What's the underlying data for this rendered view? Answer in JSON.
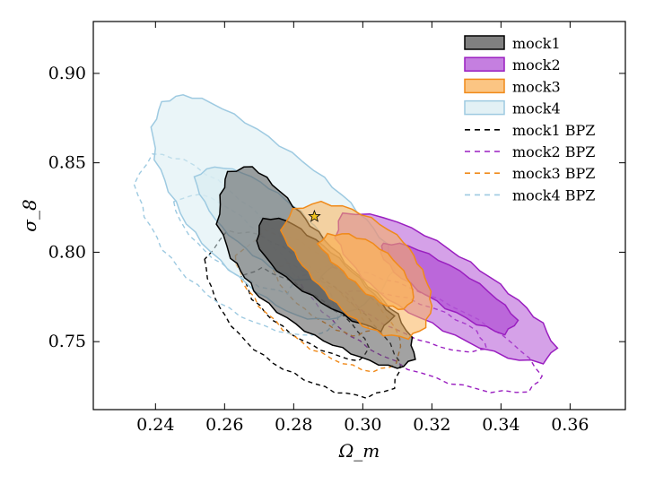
{
  "chart_data": {
    "type": "contour",
    "title": "",
    "xlabel": "Ω_m",
    "ylabel": "σ_8",
    "xlim": [
      0.222,
      0.376
    ],
    "ylim": [
      0.712,
      0.929
    ],
    "xticks": [
      0.24,
      0.26,
      0.28,
      0.3,
      0.32,
      0.34,
      0.36
    ],
    "yticks": [
      0.75,
      0.8,
      0.85,
      0.9
    ],
    "xtick_labels": [
      "0.24",
      "0.26",
      "0.28",
      "0.30",
      "0.32",
      "0.34",
      "0.36"
    ],
    "ytick_labels": [
      "0.75",
      "0.80",
      "0.85",
      "0.90"
    ],
    "grid": false,
    "legend_position": "top-right",
    "fiducial_marker": {
      "symbol": "star",
      "x": 0.286,
      "y": 0.82,
      "color": "#f2c31b"
    },
    "series": [
      {
        "name": "mock1",
        "style": "filled",
        "color": "#000000",
        "fill": "#555555",
        "outer": [
          [
            0.262,
            0.797
          ],
          [
            0.266,
            0.786
          ],
          [
            0.27,
            0.775
          ],
          [
            0.278,
            0.763
          ],
          [
            0.286,
            0.753
          ],
          [
            0.294,
            0.746
          ],
          [
            0.302,
            0.739
          ],
          [
            0.31,
            0.735
          ],
          [
            0.315,
            0.74
          ],
          [
            0.314,
            0.752
          ],
          [
            0.31,
            0.765
          ],
          [
            0.304,
            0.777
          ],
          [
            0.297,
            0.79
          ],
          [
            0.291,
            0.803
          ],
          [
            0.285,
            0.815
          ],
          [
            0.28,
            0.826
          ],
          [
            0.274,
            0.838
          ],
          [
            0.268,
            0.848
          ],
          [
            0.261,
            0.845
          ],
          [
            0.259,
            0.832
          ],
          [
            0.258,
            0.816
          ]
        ],
        "inner": [
          [
            0.269,
            0.806
          ],
          [
            0.273,
            0.794
          ],
          [
            0.28,
            0.782
          ],
          [
            0.288,
            0.772
          ],
          [
            0.297,
            0.762
          ],
          [
            0.305,
            0.756
          ],
          [
            0.309,
            0.764
          ],
          [
            0.303,
            0.777
          ],
          [
            0.297,
            0.789
          ],
          [
            0.291,
            0.8
          ],
          [
            0.284,
            0.81
          ],
          [
            0.278,
            0.818
          ],
          [
            0.271,
            0.819
          ]
        ]
      },
      {
        "name": "mock2",
        "style": "filled",
        "color": "#9a1fc0",
        "fill": "#b254d6",
        "outer": [
          [
            0.292,
            0.808
          ],
          [
            0.296,
            0.795
          ],
          [
            0.302,
            0.782
          ],
          [
            0.31,
            0.77
          ],
          [
            0.32,
            0.76
          ],
          [
            0.33,
            0.75
          ],
          [
            0.342,
            0.741
          ],
          [
            0.352,
            0.738
          ],
          [
            0.356,
            0.746
          ],
          [
            0.352,
            0.76
          ],
          [
            0.345,
            0.773
          ],
          [
            0.337,
            0.786
          ],
          [
            0.328,
            0.798
          ],
          [
            0.318,
            0.81
          ],
          [
            0.306,
            0.82
          ],
          [
            0.294,
            0.822
          ]
        ],
        "inner": [
          [
            0.305,
            0.8
          ],
          [
            0.309,
            0.789
          ],
          [
            0.316,
            0.779
          ],
          [
            0.324,
            0.769
          ],
          [
            0.333,
            0.76
          ],
          [
            0.341,
            0.754
          ],
          [
            0.345,
            0.762
          ],
          [
            0.339,
            0.774
          ],
          [
            0.331,
            0.786
          ],
          [
            0.322,
            0.796
          ],
          [
            0.313,
            0.804
          ],
          [
            0.306,
            0.805
          ]
        ]
      },
      {
        "name": "mock3",
        "style": "filled",
        "color": "#f08a1a",
        "fill": "#fab25a",
        "outer": [
          [
            0.276,
            0.812
          ],
          [
            0.28,
            0.8
          ],
          [
            0.284,
            0.789
          ],
          [
            0.289,
            0.778
          ],
          [
            0.294,
            0.768
          ],
          [
            0.3,
            0.759
          ],
          [
            0.306,
            0.754
          ],
          [
            0.313,
            0.752
          ],
          [
            0.318,
            0.758
          ],
          [
            0.32,
            0.77
          ],
          [
            0.319,
            0.782
          ],
          [
            0.316,
            0.794
          ],
          [
            0.312,
            0.806
          ],
          [
            0.305,
            0.816
          ],
          [
            0.297,
            0.824
          ],
          [
            0.288,
            0.828
          ],
          [
            0.28,
            0.824
          ]
        ],
        "inner": [
          [
            0.287,
            0.805
          ],
          [
            0.291,
            0.795
          ],
          [
            0.296,
            0.786
          ],
          [
            0.301,
            0.777
          ],
          [
            0.307,
            0.77
          ],
          [
            0.312,
            0.768
          ],
          [
            0.315,
            0.775
          ],
          [
            0.313,
            0.786
          ],
          [
            0.309,
            0.796
          ],
          [
            0.303,
            0.805
          ],
          [
            0.296,
            0.81
          ],
          [
            0.29,
            0.81
          ]
        ]
      },
      {
        "name": "mock4",
        "style": "filled",
        "color": "#9ecae1",
        "fill": "#d9ecf2",
        "outer": [
          [
            0.239,
            0.87
          ],
          [
            0.24,
            0.852
          ],
          [
            0.244,
            0.834
          ],
          [
            0.249,
            0.816
          ],
          [
            0.256,
            0.8
          ],
          [
            0.264,
            0.786
          ],
          [
            0.272,
            0.774
          ],
          [
            0.281,
            0.764
          ],
          [
            0.29,
            0.762
          ],
          [
            0.298,
            0.768
          ],
          [
            0.305,
            0.778
          ],
          [
            0.309,
            0.79
          ],
          [
            0.307,
            0.804
          ],
          [
            0.301,
            0.818
          ],
          [
            0.294,
            0.832
          ],
          [
            0.286,
            0.846
          ],
          [
            0.276,
            0.86
          ],
          [
            0.266,
            0.873
          ],
          [
            0.256,
            0.884
          ],
          [
            0.248,
            0.888
          ],
          [
            0.242,
            0.884
          ]
        ],
        "inner": [
          [
            0.251,
            0.842
          ],
          [
            0.254,
            0.828
          ],
          [
            0.259,
            0.814
          ],
          [
            0.266,
            0.802
          ],
          [
            0.273,
            0.792
          ],
          [
            0.28,
            0.785
          ],
          [
            0.287,
            0.784
          ],
          [
            0.291,
            0.792
          ],
          [
            0.29,
            0.803
          ],
          [
            0.286,
            0.815
          ],
          [
            0.28,
            0.826
          ],
          [
            0.273,
            0.836
          ],
          [
            0.265,
            0.845
          ],
          [
            0.257,
            0.848
          ]
        ]
      },
      {
        "name": "mock1 BPZ",
        "style": "dashed",
        "color": "#000000",
        "outer": [
          [
            0.254,
            0.796
          ],
          [
            0.256,
            0.78
          ],
          [
            0.26,
            0.764
          ],
          [
            0.266,
            0.75
          ],
          [
            0.274,
            0.738
          ],
          [
            0.283,
            0.729
          ],
          [
            0.292,
            0.722
          ],
          [
            0.301,
            0.719
          ],
          [
            0.309,
            0.724
          ],
          [
            0.311,
            0.738
          ],
          [
            0.306,
            0.754
          ],
          [
            0.298,
            0.77
          ],
          [
            0.289,
            0.785
          ],
          [
            0.28,
            0.799
          ],
          [
            0.27,
            0.81
          ],
          [
            0.261,
            0.812
          ]
        ],
        "inner": [
          [
            0.265,
            0.787
          ],
          [
            0.268,
            0.774
          ],
          [
            0.274,
            0.762
          ],
          [
            0.282,
            0.751
          ],
          [
            0.291,
            0.743
          ],
          [
            0.299,
            0.739
          ],
          [
            0.302,
            0.747
          ],
          [
            0.297,
            0.76
          ],
          [
            0.289,
            0.772
          ],
          [
            0.28,
            0.783
          ],
          [
            0.271,
            0.791
          ]
        ]
      },
      {
        "name": "mock2 BPZ",
        "style": "dashed",
        "color": "#9a1fc0",
        "outer": [
          [
            0.281,
            0.786
          ],
          [
            0.286,
            0.772
          ],
          [
            0.293,
            0.758
          ],
          [
            0.302,
            0.746
          ],
          [
            0.313,
            0.735
          ],
          [
            0.325,
            0.727
          ],
          [
            0.337,
            0.722
          ],
          [
            0.348,
            0.722
          ],
          [
            0.352,
            0.731
          ],
          [
            0.346,
            0.745
          ],
          [
            0.337,
            0.758
          ],
          [
            0.326,
            0.77
          ],
          [
            0.314,
            0.78
          ],
          [
            0.302,
            0.788
          ],
          [
            0.29,
            0.792
          ]
        ],
        "inner": [
          [
            0.295,
            0.778
          ],
          [
            0.3,
            0.767
          ],
          [
            0.309,
            0.757
          ],
          [
            0.319,
            0.749
          ],
          [
            0.329,
            0.744
          ],
          [
            0.336,
            0.746
          ],
          [
            0.333,
            0.756
          ],
          [
            0.324,
            0.766
          ],
          [
            0.313,
            0.774
          ],
          [
            0.302,
            0.779
          ]
        ]
      },
      {
        "name": "mock3 BPZ",
        "style": "dashed",
        "color": "#f08a1a",
        "outer": [
          [
            0.263,
            0.798
          ],
          [
            0.265,
            0.784
          ],
          [
            0.27,
            0.77
          ],
          [
            0.277,
            0.757
          ],
          [
            0.285,
            0.746
          ],
          [
            0.294,
            0.738
          ],
          [
            0.303,
            0.733
          ],
          [
            0.31,
            0.738
          ],
          [
            0.311,
            0.752
          ],
          [
            0.306,
            0.767
          ],
          [
            0.299,
            0.781
          ],
          [
            0.291,
            0.794
          ],
          [
            0.282,
            0.806
          ],
          [
            0.272,
            0.812
          ]
        ],
        "inner": [
          [
            0.274,
            0.79
          ],
          [
            0.277,
            0.779
          ],
          [
            0.283,
            0.768
          ],
          [
            0.29,
            0.759
          ],
          [
            0.297,
            0.753
          ],
          [
            0.302,
            0.756
          ],
          [
            0.299,
            0.767
          ],
          [
            0.293,
            0.778
          ],
          [
            0.285,
            0.788
          ],
          [
            0.278,
            0.794
          ]
        ]
      },
      {
        "name": "mock4 BPZ",
        "style": "dashed",
        "color": "#9ecae1",
        "outer": [
          [
            0.234,
            0.838
          ],
          [
            0.237,
            0.82
          ],
          [
            0.242,
            0.802
          ],
          [
            0.249,
            0.786
          ],
          [
            0.258,
            0.772
          ],
          [
            0.268,
            0.761
          ],
          [
            0.279,
            0.754
          ],
          [
            0.288,
            0.754
          ],
          [
            0.293,
            0.762
          ],
          [
            0.291,
            0.776
          ],
          [
            0.285,
            0.792
          ],
          [
            0.277,
            0.808
          ],
          [
            0.268,
            0.824
          ],
          [
            0.258,
            0.84
          ],
          [
            0.248,
            0.852
          ],
          [
            0.239,
            0.855
          ]
        ],
        "inner": [
          [
            0.245,
            0.828
          ],
          [
            0.248,
            0.814
          ],
          [
            0.254,
            0.801
          ],
          [
            0.262,
            0.789
          ],
          [
            0.27,
            0.781
          ],
          [
            0.278,
            0.777
          ],
          [
            0.281,
            0.785
          ],
          [
            0.277,
            0.798
          ],
          [
            0.27,
            0.811
          ],
          [
            0.262,
            0.824
          ],
          [
            0.253,
            0.833
          ]
        ]
      }
    ]
  }
}
